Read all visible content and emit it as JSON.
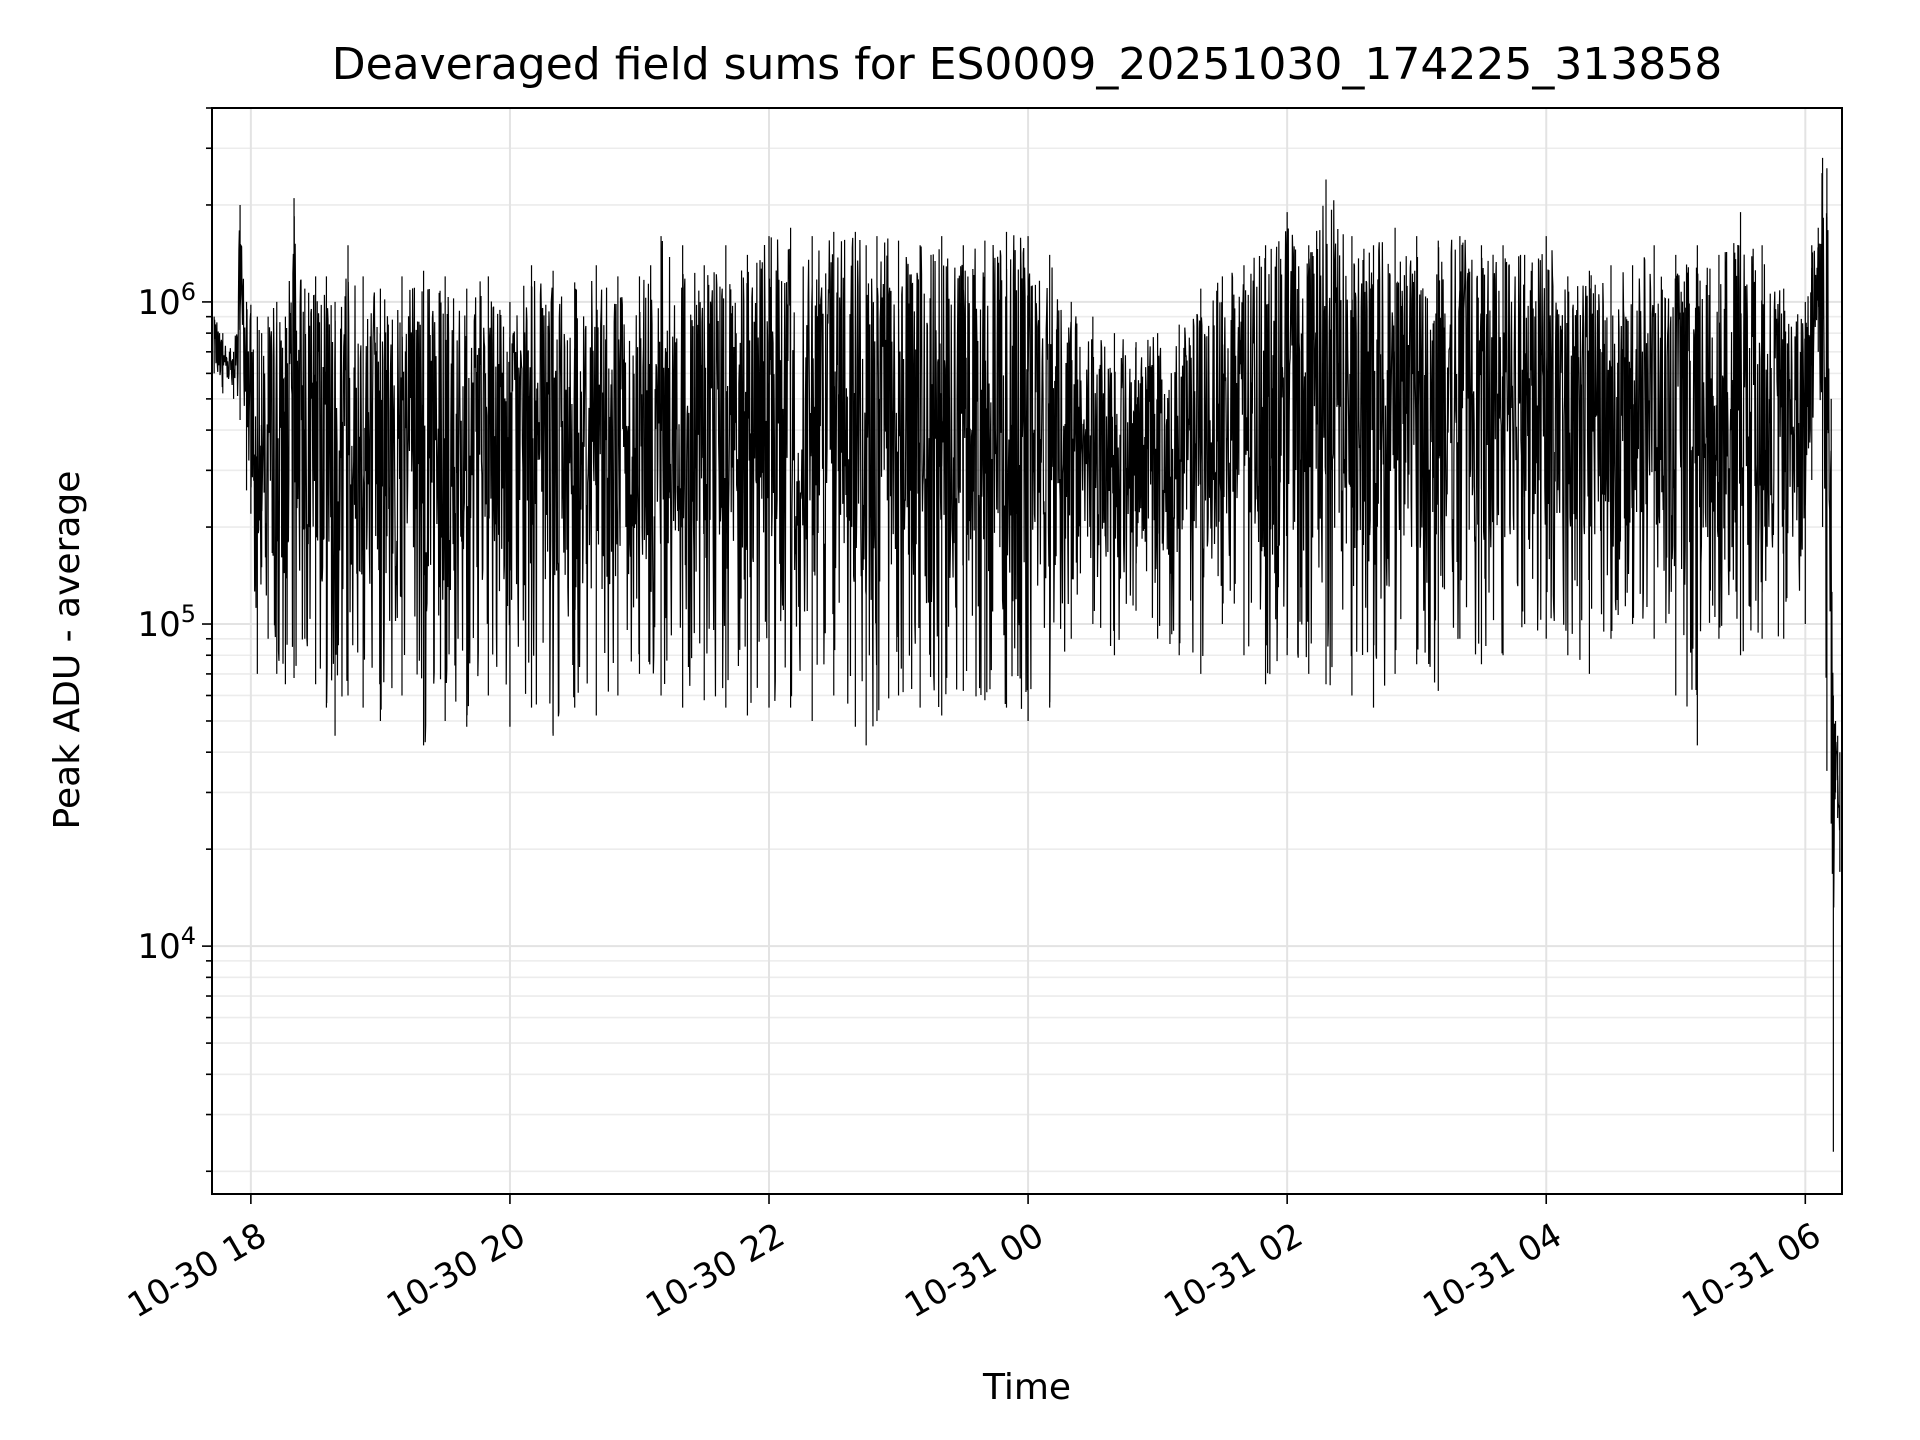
{
  "chart_data": {
    "type": "line",
    "title": "Deaveraged field sums for ES0009_20251030_174225_313858",
    "xlabel": "Time",
    "ylabel": "Peak ADU - average",
    "yscale": "log",
    "ylim": [
      1700,
      4000000
    ],
    "xlim": [
      "2025-10-30T17:42:00",
      "2025-10-31T06:17:00"
    ],
    "x_ticks": [
      {
        "value": "2025-10-30T18:00:00",
        "label": "10-30 18"
      },
      {
        "value": "2025-10-30T20:00:00",
        "label": "10-30 20"
      },
      {
        "value": "2025-10-30T22:00:00",
        "label": "10-30 22"
      },
      {
        "value": "2025-10-31T00:00:00",
        "label": "10-31 00"
      },
      {
        "value": "2025-10-31T02:00:00",
        "label": "10-31 02"
      },
      {
        "value": "2025-10-31T04:00:00",
        "label": "10-31 04"
      },
      {
        "value": "2025-10-31T06:00:00",
        "label": "10-31 06"
      }
    ],
    "y_ticks": [
      {
        "value": 10000,
        "base": "10",
        "exp": "4"
      },
      {
        "value": 100000,
        "base": "10",
        "exp": "5"
      },
      {
        "value": 1000000,
        "base": "10",
        "exp": "6"
      }
    ],
    "grid": true,
    "line_color": "#000000",
    "series": [
      {
        "x": [
          "2025-10-30T17:43:00",
          "2025-10-30T17:47:00",
          "2025-10-30T17:52:00",
          "2025-10-30T17:55:00",
          "2025-10-30T17:58:00",
          "2025-10-30T18:00:00",
          "2025-10-30T18:03:00",
          "2025-10-30T18:05:00",
          "2025-10-30T18:08:00",
          "2025-10-30T18:12:00",
          "2025-10-30T18:16:00",
          "2025-10-30T18:20:00",
          "2025-10-30T18:25:00",
          "2025-10-30T18:30:00",
          "2025-10-30T18:35:00",
          "2025-10-30T18:39:00",
          "2025-10-30T18:45:00",
          "2025-10-30T18:52:00",
          "2025-10-30T19:00:00",
          "2025-10-30T19:10:00",
          "2025-10-30T19:20:00",
          "2025-10-30T19:30:00",
          "2025-10-30T19:40:00",
          "2025-10-30T19:50:00",
          "2025-10-30T20:00:00",
          "2025-10-30T20:10:00",
          "2025-10-30T20:20:00",
          "2025-10-30T20:30:00",
          "2025-10-30T20:40:00",
          "2025-10-30T20:50:00",
          "2025-10-30T21:00:00",
          "2025-10-30T21:10:00",
          "2025-10-30T21:20:00",
          "2025-10-30T21:30:00",
          "2025-10-30T21:40:00",
          "2025-10-30T21:50:00",
          "2025-10-30T22:00:00",
          "2025-10-30T22:10:00",
          "2025-10-30T22:20:00",
          "2025-10-30T22:30:00",
          "2025-10-30T22:40:00",
          "2025-10-30T22:45:00",
          "2025-10-30T22:50:00",
          "2025-10-30T23:00:00",
          "2025-10-30T23:10:00",
          "2025-10-30T23:20:00",
          "2025-10-30T23:30:00",
          "2025-10-30T23:40:00",
          "2025-10-30T23:50:00",
          "2025-10-31T00:00:00",
          "2025-10-31T00:10:00",
          "2025-10-31T00:20:00",
          "2025-10-31T00:30:00",
          "2025-10-31T00:40:00",
          "2025-10-31T00:50:00",
          "2025-10-31T01:00:00",
          "2025-10-31T01:10:00",
          "2025-10-31T01:20:00",
          "2025-10-31T01:30:00",
          "2025-10-31T01:40:00",
          "2025-10-31T01:50:00",
          "2025-10-31T02:00:00",
          "2025-10-31T02:10:00",
          "2025-10-31T02:18:00",
          "2025-10-31T02:30:00",
          "2025-10-31T02:40:00",
          "2025-10-31T02:50:00",
          "2025-10-31T03:00:00",
          "2025-10-31T03:10:00",
          "2025-10-31T03:20:00",
          "2025-10-31T03:30:00",
          "2025-10-31T03:40:00",
          "2025-10-31T03:50:00",
          "2025-10-31T04:00:00",
          "2025-10-31T04:10:00",
          "2025-10-31T04:20:00",
          "2025-10-31T04:30:00",
          "2025-10-31T04:40:00",
          "2025-10-31T04:50:00",
          "2025-10-31T05:00:00",
          "2025-10-31T05:10:00",
          "2025-10-31T05:20:00",
          "2025-10-31T05:30:00",
          "2025-10-31T05:40:00",
          "2025-10-31T05:50:00",
          "2025-10-31T06:00:00",
          "2025-10-31T06:03:00",
          "2025-10-31T06:06:00",
          "2025-10-31T06:08:00",
          "2025-10-31T06:10:00",
          "2025-10-31T06:12:00",
          "2025-10-31T06:13:00",
          "2025-10-31T06:14:00",
          "2025-10-31T06:15:00",
          "2025-10-31T06:16:00"
        ],
        "min": [
          600000,
          520000,
          500000,
          430000,
          260000,
          220000,
          70000,
          150000,
          90000,
          70000,
          65000,
          68000,
          90000,
          65000,
          55000,
          45000,
          60000,
          55000,
          50000,
          60000,
          42000,
          50000,
          48000,
          60000,
          48000,
          55000,
          45000,
          55000,
          52000,
          60000,
          70000,
          60000,
          55000,
          58000,
          55000,
          52000,
          55000,
          55000,
          50000,
          60000,
          48000,
          42000,
          50000,
          60000,
          55000,
          52000,
          62000,
          58000,
          55000,
          50000,
          55000,
          90000,
          100000,
          80000,
          110000,
          90000,
          80000,
          70000,
          100000,
          80000,
          65000,
          80000,
          70000,
          65000,
          60000,
          55000,
          70000,
          75000,
          62000,
          90000,
          75000,
          80000,
          100000,
          90000,
          80000,
          70000,
          90000,
          100000,
          90000,
          60000,
          42000,
          90000,
          80000,
          90000,
          90000,
          100000,
          280000,
          700000,
          200000,
          35000,
          24000,
          2300,
          30000,
          25000,
          17000
        ],
        "max": [
          900000,
          800000,
          700000,
          2000000,
          1000000,
          980000,
          900000,
          800000,
          900000,
          1000000,
          900000,
          2100000,
          1100000,
          1200000,
          1200000,
          1000000,
          1500000,
          1200000,
          1100000,
          1200000,
          1250000,
          1200000,
          1100000,
          1200000,
          1000000,
          1300000,
          1250000,
          1150000,
          1300000,
          1200000,
          1200000,
          1600000,
          1500000,
          1300000,
          1500000,
          1400000,
          1600000,
          1700000,
          1600000,
          1650000,
          1650000,
          1500000,
          1600000,
          1550000,
          1500000,
          1600000,
          1500000,
          1550000,
          1650000,
          1600000,
          1400000,
          1000000,
          900000,
          800000,
          750000,
          800000,
          850000,
          1100000,
          1200000,
          1300000,
          1500000,
          1900000,
          1500000,
          2400000,
          1600000,
          1500000,
          1700000,
          1600000,
          1550000,
          1600000,
          1500000,
          1500000,
          1400000,
          1600000,
          1200000,
          1250000,
          1300000,
          1300000,
          1500000,
          1400000,
          1500000,
          1400000,
          1900000,
          1500000,
          1100000,
          1000000,
          1500000,
          1700000,
          2800000,
          2600000,
          500000,
          60000,
          50000,
          45000,
          40000
        ]
      }
    ]
  }
}
